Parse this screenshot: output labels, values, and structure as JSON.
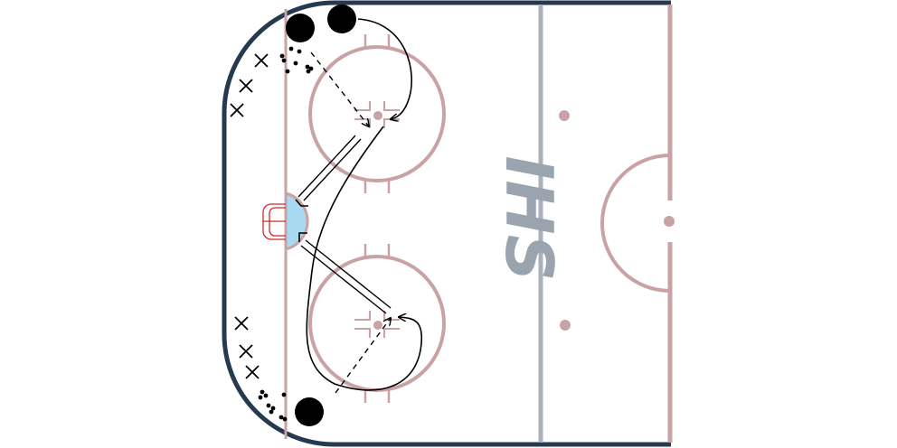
{
  "logo": {
    "text": "IHS",
    "color": "#9aa4ae"
  },
  "colors": {
    "boards": "#263a4f",
    "rink_lines": "#c9a2a4",
    "blue_line": "#a9b2bc",
    "crease_fill": "#a9d9f0",
    "goal_net": "#cc2a2a",
    "skate_path": "#000000",
    "player": "#000000"
  },
  "icons": [
    "player-icon",
    "x-marker-icon",
    "puck-icon",
    "goal-net-icon"
  ]
}
